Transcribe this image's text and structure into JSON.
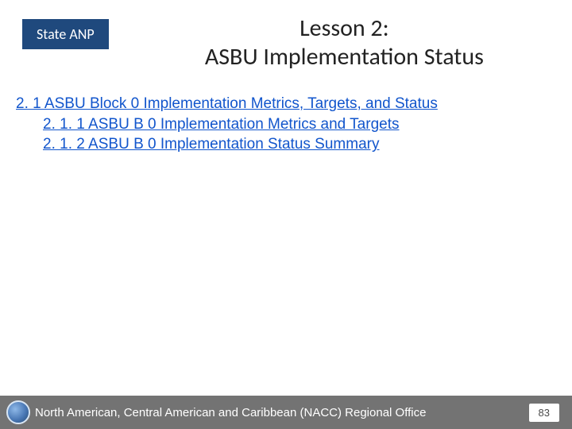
{
  "header": {
    "badge": "State ANP",
    "title_line1": "Lesson 2:",
    "title_line2": "ASBU Implementation Status"
  },
  "toc": {
    "link_color": "#1155cc",
    "items": [
      {
        "text": "2. 1  ASBU Block 0 Implementation Metrics, Targets, and Status",
        "indent": 0
      },
      {
        "text": "2. 1. 1  ASBU B 0 Implementation Metrics and Targets",
        "indent": 1
      },
      {
        "text": "2. 1. 2  ASBU B 0 Implementation Status Summary",
        "indent": 1
      }
    ]
  },
  "footer": {
    "org": "North American, Central American and Caribbean (NACC) Regional Office",
    "page": "83",
    "bar_color": "#737373"
  },
  "colors": {
    "badge_bg": "#1f497d",
    "badge_text": "#ffffff",
    "title_text": "#222222",
    "page_bg": "#ffffff"
  }
}
